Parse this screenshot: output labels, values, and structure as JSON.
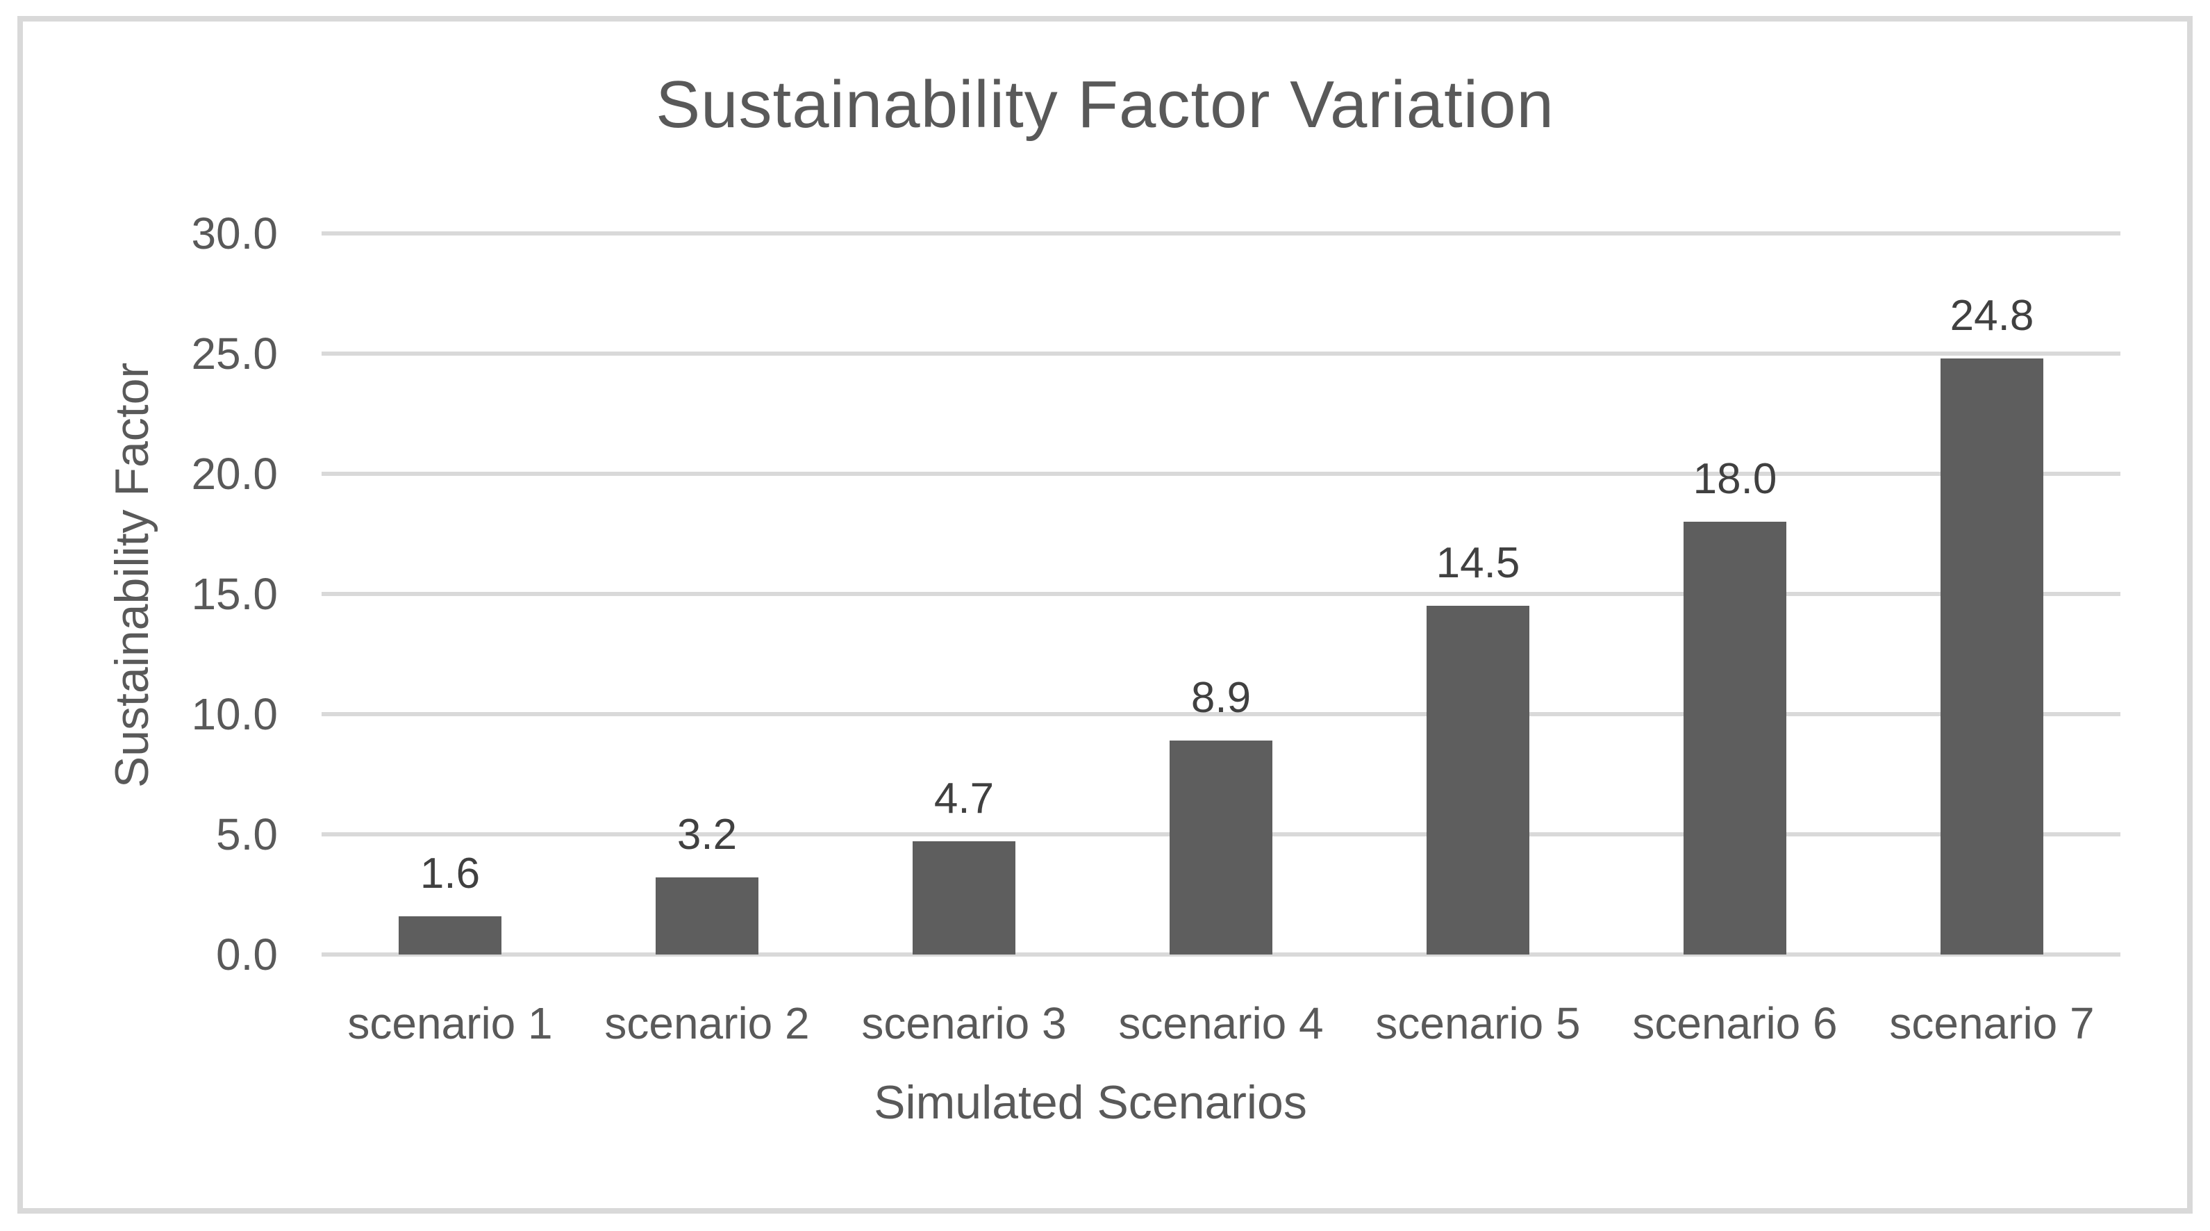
{
  "chart_data": {
    "type": "bar",
    "title": "Sustainability Factor Variation",
    "xlabel": "Simulated Scenarios",
    "ylabel": "Sustainability Factor",
    "categories": [
      "scenario 1",
      "scenario 2",
      "scenario 3",
      "scenario 4",
      "scenario 5",
      "scenario 6",
      "scenario 7"
    ],
    "values": [
      1.6,
      3.2,
      4.7,
      8.9,
      14.5,
      18.0,
      24.8
    ],
    "data_labels": [
      "1.6",
      "3.2",
      "4.7",
      "8.9",
      "14.5",
      "18.0",
      "24.8"
    ],
    "ylim": [
      0,
      30
    ],
    "ytick_step": 5,
    "ytick_labels": [
      "0.0",
      "5.0",
      "10.0",
      "15.0",
      "20.0",
      "25.0",
      "30.0"
    ],
    "grid": true,
    "legend": false,
    "colors": {
      "bar": "#5e5e5e",
      "gridline": "#d9d9d9",
      "axis_text": "#595959",
      "data_label": "#404040",
      "title": "#595959",
      "frame_border": "#d9d9d9",
      "background": "#ffffff"
    }
  }
}
